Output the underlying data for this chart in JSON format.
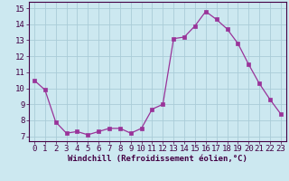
{
  "x": [
    0,
    1,
    2,
    3,
    4,
    5,
    6,
    7,
    8,
    9,
    10,
    11,
    12,
    13,
    14,
    15,
    16,
    17,
    18,
    19,
    20,
    21,
    22,
    23
  ],
  "y": [
    10.5,
    9.9,
    7.9,
    7.2,
    7.3,
    7.1,
    7.3,
    7.5,
    7.5,
    7.2,
    7.5,
    8.7,
    9.0,
    13.1,
    13.2,
    13.9,
    14.8,
    14.3,
    13.7,
    12.8,
    11.5,
    10.3,
    9.3,
    8.4
  ],
  "line_color": "#993399",
  "marker_color": "#993399",
  "bg_color": "#cce8f0",
  "grid_color": "#aaccd8",
  "xlabel": "Windchill (Refroidissement éolien,°C)",
  "ylabel_ticks": [
    7,
    8,
    9,
    10,
    11,
    12,
    13,
    14,
    15
  ],
  "xlim": [
    -0.5,
    23.5
  ],
  "ylim": [
    6.7,
    15.4
  ],
  "xlabel_fontsize": 6.5,
  "tick_fontsize": 6.5
}
